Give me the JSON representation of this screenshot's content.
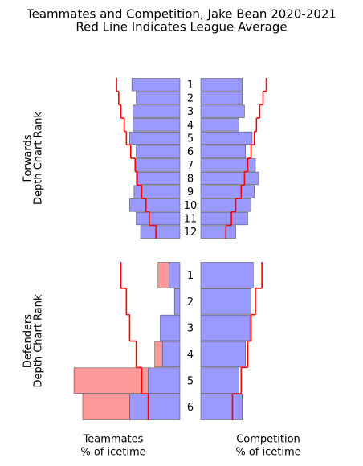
{
  "chart_data": [
    {
      "type": "butterfly",
      "title": "Teammates and Competition, Jake Bean 2020-2021",
      "subtitle": "Red Line Indicates League Average",
      "ylabel": [
        "Forwards",
        "Depth Chart Rank"
      ],
      "categories": [
        "1",
        "2",
        "3",
        "4",
        "5",
        "6",
        "7",
        "8",
        "9",
        "10",
        "11",
        "12"
      ],
      "xlim": [
        0,
        100
      ],
      "series": [
        {
          "side": "left",
          "kind": "bar",
          "color": "#9999ff",
          "values": [
            44,
            40,
            43,
            43,
            46,
            40,
            40,
            40,
            42,
            46,
            40,
            36
          ]
        },
        {
          "side": "left",
          "kind": "step",
          "color": "#ff0000",
          "values": [
            58,
            56,
            54,
            51,
            49,
            45,
            41,
            39,
            35,
            31,
            28,
            22
          ]
        },
        {
          "side": "right",
          "kind": "bar",
          "color": "#9999ff",
          "values": [
            38,
            38,
            40,
            35,
            47,
            41,
            50,
            53,
            49,
            46,
            43,
            32
          ]
        },
        {
          "side": "right",
          "kind": "step",
          "color": "#ff0000",
          "values": [
            60,
            57,
            54,
            51,
            49,
            46,
            43,
            40,
            37,
            32,
            28,
            23
          ]
        }
      ]
    },
    {
      "type": "butterfly",
      "ylabel": [
        "Defenders",
        "Depth Chart Rank"
      ],
      "left_xlabel": [
        "Teammates",
        "% of icetime"
      ],
      "right_xlabel": [
        "Competition",
        "% of icetime"
      ],
      "categories": [
        "1",
        "2",
        "3",
        "4",
        "5",
        "6"
      ],
      "xlim": [
        0,
        100
      ],
      "series": [
        {
          "side": "left",
          "kind": "bar",
          "color": "#9999ff",
          "values": [
            10,
            5,
            18,
            16,
            29,
            46
          ]
        },
        {
          "side": "left",
          "kind": "bar",
          "color": "#ff9999",
          "values": [
            10,
            null,
            null,
            7,
            68,
            43
          ]
        },
        {
          "side": "left",
          "kind": "step",
          "color": "#ff0000",
          "values": [
            54,
            49,
            46,
            40,
            35,
            29
          ]
        },
        {
          "side": "right",
          "kind": "bar",
          "color": "#9999ff",
          "values": [
            48,
            46,
            45,
            41,
            35,
            38
          ]
        },
        {
          "side": "right",
          "kind": "step",
          "color": "#ff0000",
          "values": [
            56,
            50,
            46,
            43,
            37,
            29
          ]
        }
      ]
    }
  ]
}
